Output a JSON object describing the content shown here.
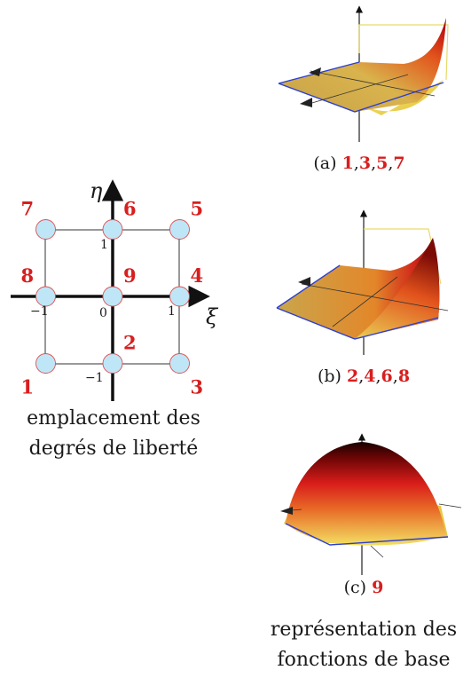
{
  "reference_element": {
    "axes": {
      "xi": "ξ",
      "eta": "η"
    },
    "ticks": {
      "x_minus": "−1",
      "x_zero": "0",
      "x_plus": "1",
      "y_plus": "1",
      "y_minus": "−1"
    },
    "nodes": [
      {
        "id": "1",
        "xi": -1,
        "eta": -1,
        "anchor": "bottom-left"
      },
      {
        "id": "2",
        "xi": 0,
        "eta": -1,
        "anchor": "top-right"
      },
      {
        "id": "3",
        "xi": 1,
        "eta": -1,
        "anchor": "bottom-right"
      },
      {
        "id": "4",
        "xi": 1,
        "eta": 0,
        "anchor": "top-right"
      },
      {
        "id": "5",
        "xi": 1,
        "eta": 1,
        "anchor": "top-right"
      },
      {
        "id": "6",
        "xi": 0,
        "eta": 1,
        "anchor": "top-right"
      },
      {
        "id": "7",
        "xi": -1,
        "eta": 1,
        "anchor": "top-left"
      },
      {
        "id": "8",
        "xi": -1,
        "eta": 0,
        "anchor": "top-left"
      },
      {
        "id": "9",
        "xi": 0,
        "eta": 0,
        "anchor": "top-right"
      }
    ],
    "caption_line1": "emplacement des",
    "caption_line2": "degrés de liberté"
  },
  "basis_plots": [
    {
      "tag": "(a)",
      "nodes": [
        "1",
        "3",
        "5",
        "7"
      ],
      "sep": ","
    },
    {
      "tag": "(b)",
      "nodes": [
        "2",
        "4",
        "6",
        "8"
      ],
      "sep": ","
    },
    {
      "tag": "(c)",
      "nodes": [
        "9"
      ],
      "sep": ","
    }
  ],
  "right_caption_line1": "représentation des",
  "right_caption_line2": "fonctions de base",
  "colors": {
    "node_fill": "#bfe6f7",
    "node_stroke": "#e05050",
    "label_red": "#d81e1e",
    "mesh_edge": "#2b3fd1",
    "surface_low": "#f4e27a",
    "surface_mid": "#e8301a",
    "surface_high": "#2a0000"
  }
}
